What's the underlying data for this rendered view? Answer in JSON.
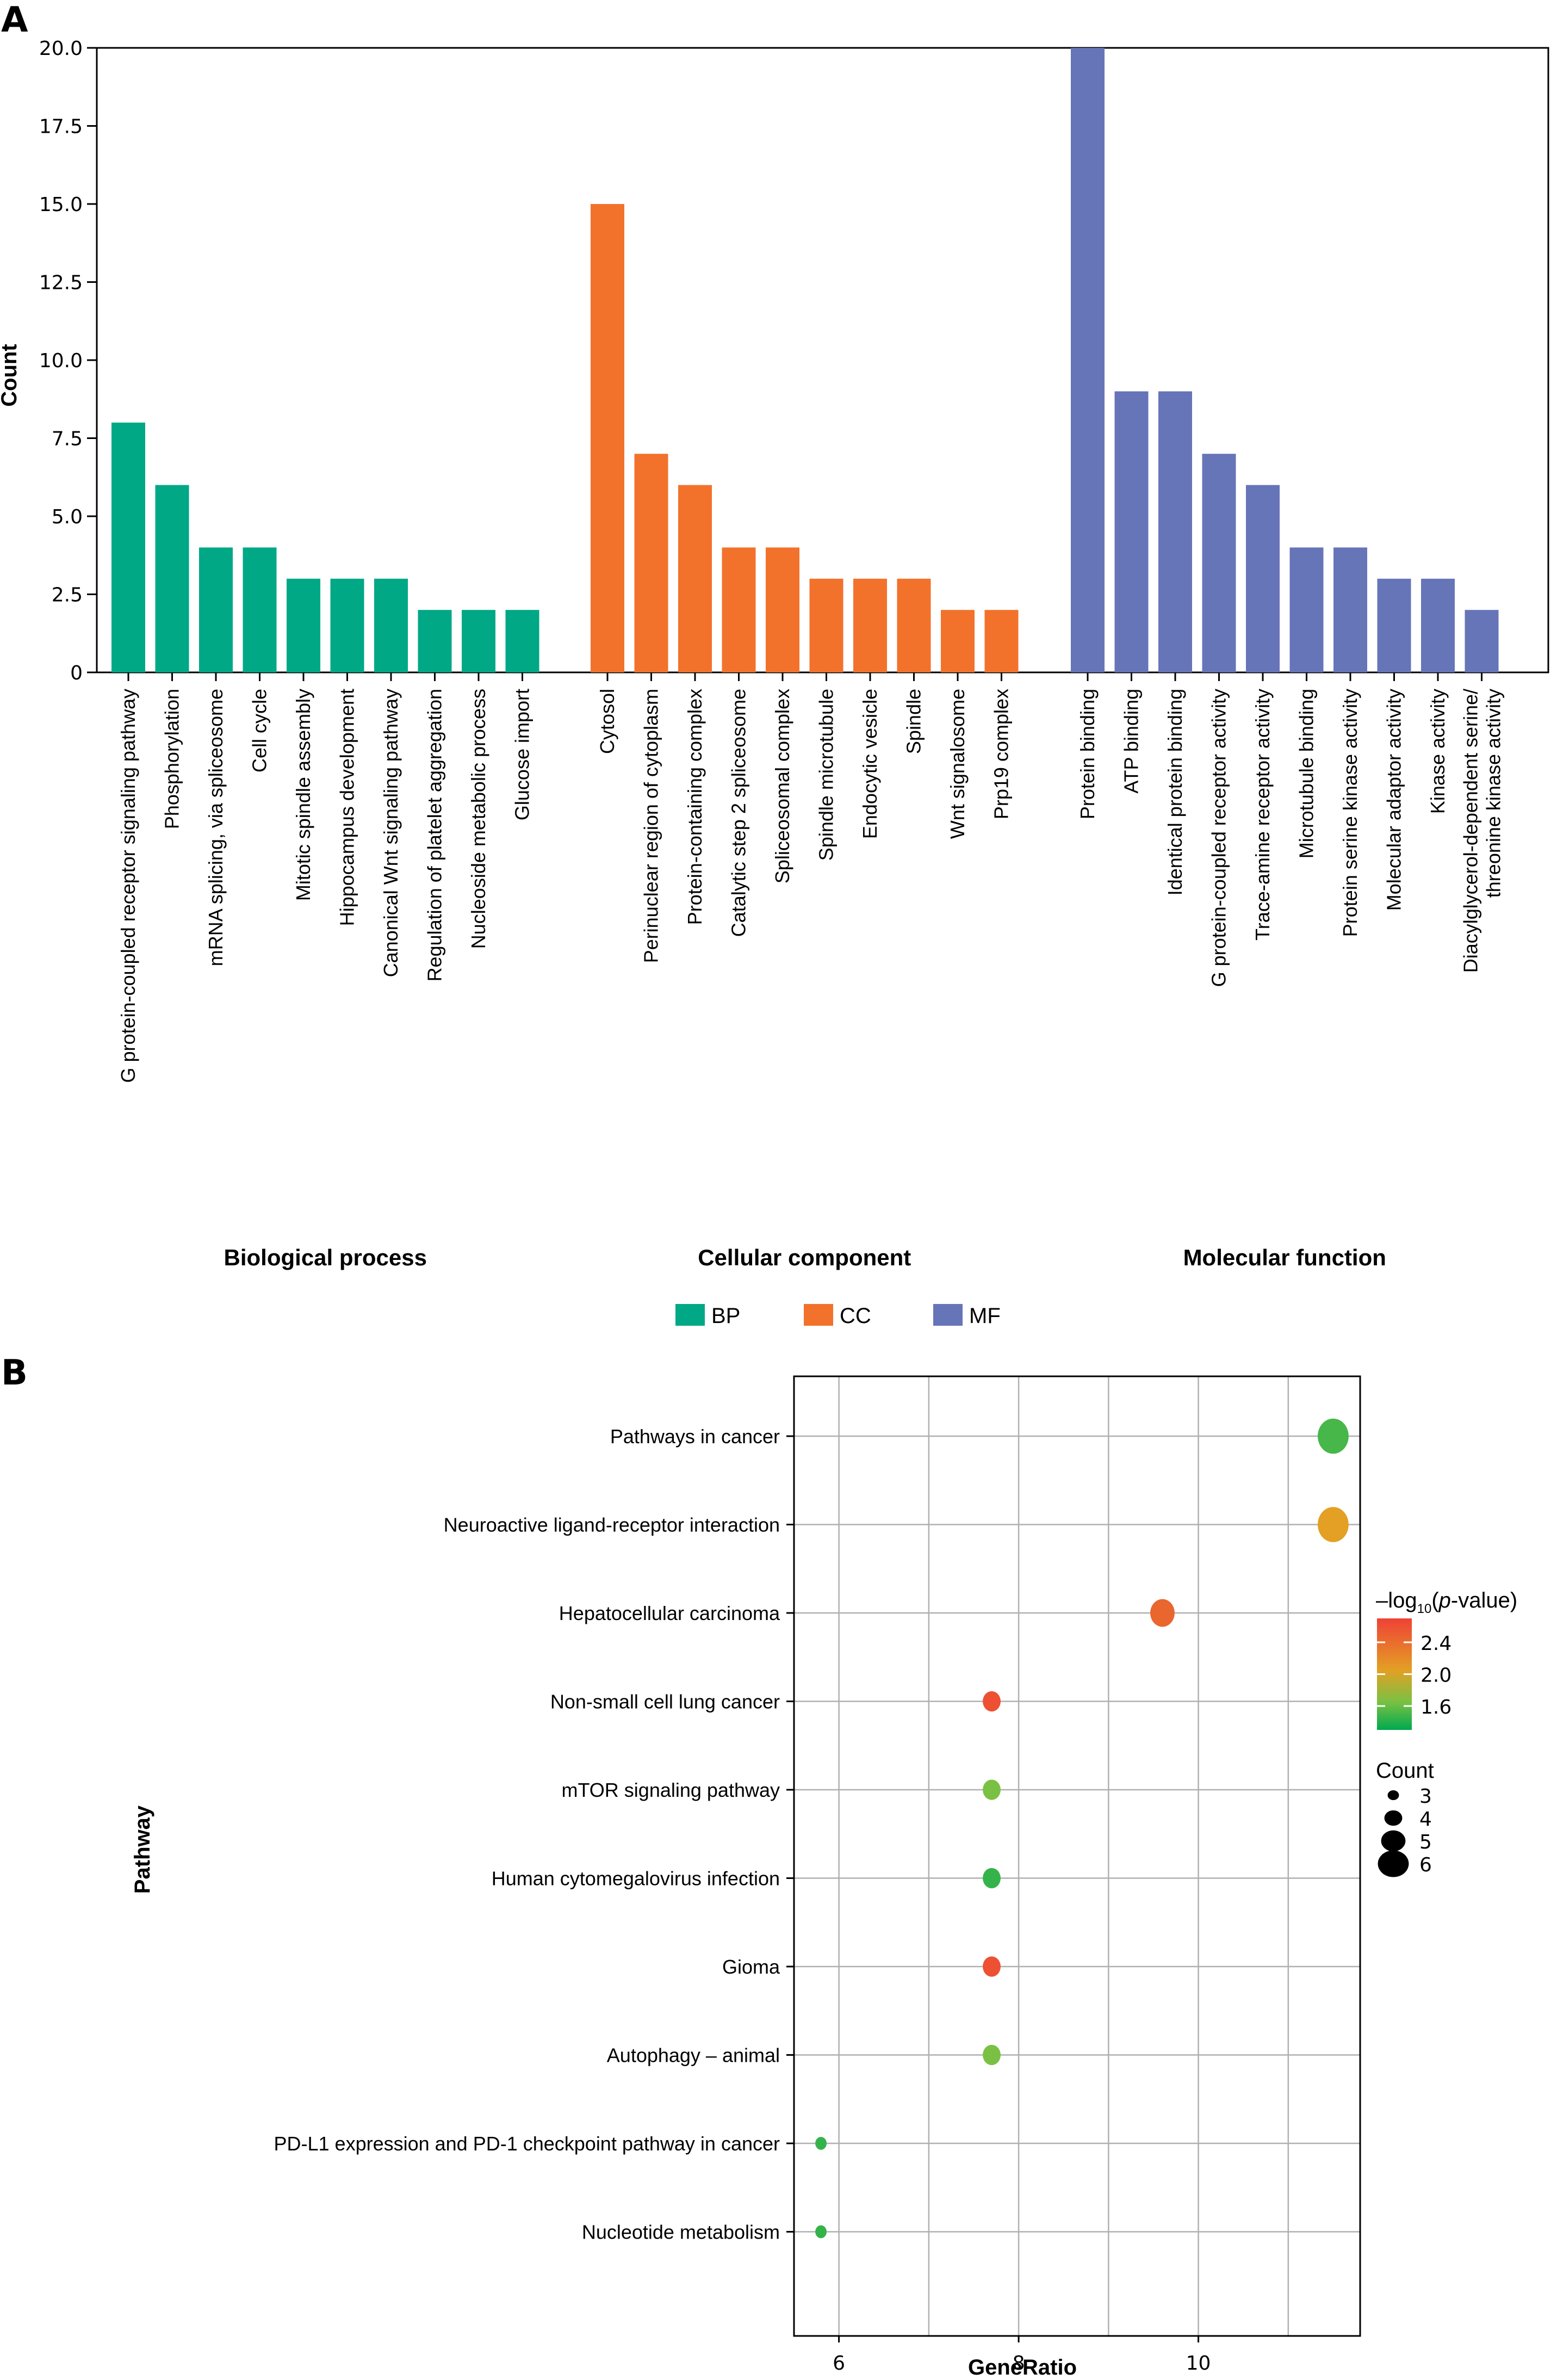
{
  "chart_data": [
    {
      "panel": "A",
      "type": "bar",
      "ylabel": "Count",
      "xlabel": "",
      "ylim": [
        0,
        20
      ],
      "yticks": [
        "0",
        "2.5",
        "5.0",
        "7.5",
        "10.0",
        "12.5",
        "15.0",
        "17.5",
        "20.0"
      ],
      "ytick_values": [
        0,
        2.5,
        5,
        7.5,
        10,
        12.5,
        15,
        17.5,
        20
      ],
      "grid": false,
      "legend_position": "bottom-center",
      "groups": [
        {
          "key": "BP",
          "name": "Biological process",
          "color": "#00A886",
          "categories": [
            "G protein-coupled receptor signaling pathway",
            "Phosphorylation",
            "mRNA splicing, via spliceosome",
            "Cell cycle",
            "Mitotic spindle assembly",
            "Hippocampus development",
            "Canonical Wnt signaling pathway",
            "Regulation of platelet aggregation",
            "Nucleoside metabolic process",
            "Glucose import"
          ],
          "values": [
            8,
            6,
            4,
            4,
            3,
            3,
            3,
            2,
            2,
            2
          ]
        },
        {
          "key": "CC",
          "name": "Cellular component",
          "color": "#F2722C",
          "categories": [
            "Cytosol",
            "Perinuclear region of cytoplasm",
            "Protein-containing complex",
            "Catalytic step 2 spliceosome",
            "Spliceosomal complex",
            "Spindle microtubule",
            "Endocytic vesicle",
            "Spindle",
            "Wnt signalosome",
            "Prp19 complex"
          ],
          "values": [
            15,
            7,
            6,
            4,
            4,
            3,
            3,
            3,
            2,
            2
          ]
        },
        {
          "key": "MF",
          "name": "Molecular function",
          "color": "#6674B8",
          "categories": [
            "Protein binding",
            "ATP binding",
            "Identical protein binding",
            "G protein-coupled receptor activity",
            "Trace-amine receptor activity",
            "Microtubule binding",
            "Protein serine kinase activity",
            "Molecular adaptor activity",
            "Kinase activity",
            "Diacylglycerol-dependent serine/\nthreonine kinase activity"
          ],
          "values": [
            20,
            9,
            9,
            7,
            6,
            4,
            4,
            3,
            3,
            2
          ]
        }
      ],
      "legend": [
        {
          "label": "BP",
          "color": "#00A886"
        },
        {
          "label": "CC",
          "color": "#F2722C"
        },
        {
          "label": "MF",
          "color": "#6674B8"
        }
      ]
    },
    {
      "panel": "B",
      "type": "scatter",
      "xlabel": "GeneRatio",
      "ylabel": "Pathway",
      "xlim": [
        5.5,
        11.8
      ],
      "xticks": [
        "6",
        "8",
        "10"
      ],
      "xtick_values": [
        6,
        8,
        10
      ],
      "grid": true,
      "points": [
        {
          "pathway": "Pathways in cancer",
          "gene_ratio": 11.5,
          "count": 6,
          "neg_log10_p": 1.5
        },
        {
          "pathway": "Neuroactive ligand-receptor interaction",
          "gene_ratio": 11.5,
          "count": 6,
          "neg_log10_p": 2.05
        },
        {
          "pathway": "Hepatocellular carcinoma",
          "gene_ratio": 9.6,
          "count": 5,
          "neg_log10_p": 2.45
        },
        {
          "pathway": "Non-small cell lung cancer",
          "gene_ratio": 7.7,
          "count": 4,
          "neg_log10_p": 2.6
        },
        {
          "pathway": "mTOR signaling pathway",
          "gene_ratio": 7.7,
          "count": 4,
          "neg_log10_p": 1.65
        },
        {
          "pathway": "Human cytomegalovirus infection",
          "gene_ratio": 7.7,
          "count": 4,
          "neg_log10_p": 1.45
        },
        {
          "pathway": "Gioma",
          "gene_ratio": 7.7,
          "count": 4,
          "neg_log10_p": 2.6
        },
        {
          "pathway": "Autophagy – animal",
          "gene_ratio": 7.7,
          "count": 4,
          "neg_log10_p": 1.65
        },
        {
          "pathway": "PD-L1 expression and PD-1 checkpoint pathway in cancer",
          "gene_ratio": 5.8,
          "count": 3,
          "neg_log10_p": 1.45
        },
        {
          "pathway": "Nucleotide metabolism",
          "gene_ratio": 5.8,
          "count": 3,
          "neg_log10_p": 1.45
        }
      ],
      "color_legend": {
        "title_prefix": "–log",
        "title_sub": "10",
        "title_paren_open": "(",
        "title_italic": "p",
        "title_suffix": "-value)",
        "range": [
          1.3,
          2.7
        ],
        "ticks": [
          "2.4",
          "2.0",
          "1.6"
        ],
        "tick_values": [
          2.4,
          2.0,
          1.6
        ],
        "colors": {
          "low": "#00A94F",
          "mid_low": "#7AC143",
          "mid": "#E3A024",
          "high": "#EF4136"
        }
      },
      "size_legend": {
        "title": "Count",
        "values": [
          3,
          4,
          5,
          6
        ],
        "labels": [
          "3",
          "4",
          "5",
          "6"
        ]
      }
    }
  ],
  "panel_labels": {
    "a": "A",
    "b": "B"
  }
}
